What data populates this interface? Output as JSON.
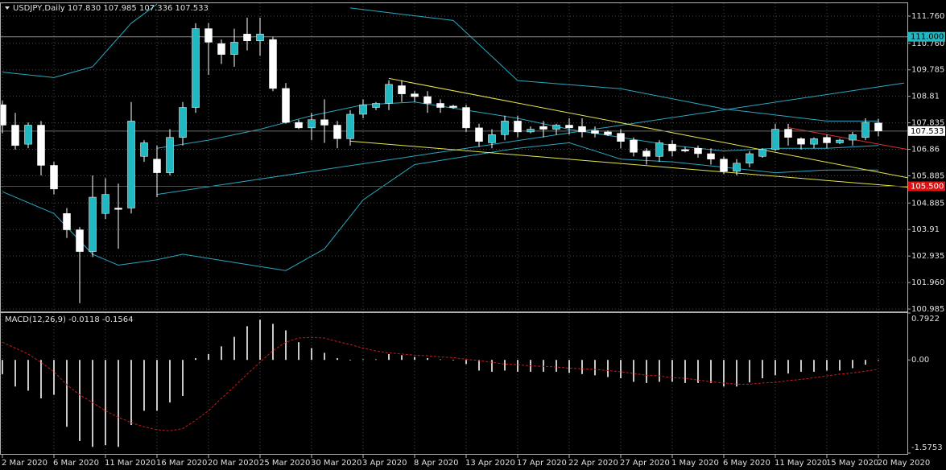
{
  "chart_data": [
    {
      "type": "candlestick",
      "title": "USDJPY,Daily  107.830 107.985 107.336 107.533",
      "categories": [
        "2 Mar 2020",
        null,
        null,
        null,
        "6 Mar 2020",
        null,
        null,
        null,
        "11 Mar 2020",
        null,
        null,
        null,
        "16 Mar 2020",
        null,
        null,
        null,
        "20 Mar 2020",
        null,
        null,
        null,
        "25 Mar 2020",
        null,
        null,
        null,
        "30 Mar 2020",
        null,
        null,
        null,
        "3 Apr 2020",
        null,
        null,
        null,
        "8 Apr 2020",
        null,
        null,
        null,
        "13 Apr 2020",
        null,
        null,
        null,
        "17 Apr 2020",
        null,
        null,
        null,
        "22 Apr 2020",
        null,
        null,
        null,
        "27 Apr 2020",
        null,
        null,
        null,
        "1 May 2020",
        null,
        null,
        null,
        "6 May 2020",
        null,
        null,
        null,
        "11 May 2020",
        null,
        null,
        null,
        "15 May 2020",
        null,
        null,
        null,
        "20 May 2020"
      ],
      "open": [
        108.5,
        107.75,
        107.05,
        107.75,
        106.27,
        104.5,
        103.9,
        103.1,
        104.5,
        104.7,
        104.7,
        106.6,
        106.5,
        106.0,
        107.3,
        108.4,
        111.3,
        110.75,
        110.35,
        111.1,
        110.85,
        110.9,
        109.1,
        107.85,
        107.65,
        107.95,
        107.75,
        107.25,
        108.15,
        108.4,
        108.55,
        109.2,
        108.9,
        108.8,
        108.55,
        108.45,
        108.4,
        107.65,
        107.1,
        107.4,
        107.9,
        107.5,
        107.7,
        107.6,
        107.75,
        107.7,
        107.55,
        107.5,
        107.45,
        107.2,
        106.8,
        106.6,
        107.05,
        106.85,
        106.9,
        106.7,
        106.5,
        106.05,
        106.35,
        106.6,
        106.85,
        107.6,
        107.25,
        107.05,
        107.3,
        107.1,
        107.2,
        107.3,
        107.83
      ],
      "high": [
        108.65,
        108.2,
        107.85,
        107.9,
        106.4,
        104.7,
        104.0,
        105.9,
        105.8,
        105.6,
        108.6,
        107.2,
        107.0,
        107.6,
        108.6,
        111.5,
        111.5,
        110.9,
        111.3,
        111.7,
        111.7,
        111.0,
        109.3,
        107.95,
        108.2,
        108.7,
        107.9,
        108.3,
        108.7,
        108.6,
        109.4,
        109.4,
        109.0,
        109.0,
        108.7,
        108.5,
        108.5,
        107.8,
        107.6,
        108.1,
        108.1,
        107.7,
        107.9,
        107.8,
        108.0,
        108.0,
        107.7,
        107.55,
        107.6,
        107.3,
        106.9,
        107.2,
        107.2,
        106.95,
        107.0,
        106.9,
        106.6,
        106.5,
        106.8,
        106.9,
        107.8,
        107.8,
        107.3,
        107.3,
        107.4,
        107.25,
        107.5,
        108.0,
        107.985
      ],
      "low": [
        107.45,
        106.85,
        106.9,
        105.9,
        105.2,
        103.6,
        101.2,
        102.9,
        104.3,
        103.2,
        104.5,
        106.4,
        105.1,
        105.9,
        107.0,
        108.2,
        109.6,
        110.0,
        109.9,
        110.5,
        110.3,
        109.0,
        107.8,
        107.6,
        107.2,
        107.1,
        106.9,
        107.0,
        108.0,
        108.3,
        108.3,
        108.6,
        108.6,
        108.2,
        108.2,
        108.35,
        107.5,
        106.95,
        106.9,
        107.2,
        107.3,
        107.45,
        107.3,
        107.4,
        107.4,
        107.3,
        107.3,
        107.35,
        106.9,
        106.6,
        106.3,
        106.4,
        106.6,
        106.75,
        106.55,
        106.3,
        105.95,
        105.9,
        106.2,
        106.55,
        106.8,
        107.0,
        106.85,
        106.9,
        106.9,
        107.05,
        107.0,
        107.2,
        107.336
      ],
      "close": [
        107.75,
        107.0,
        107.75,
        106.27,
        105.4,
        103.9,
        103.1,
        105.1,
        105.2,
        104.65,
        107.9,
        107.1,
        106.0,
        107.3,
        108.4,
        111.3,
        110.8,
        110.35,
        110.8,
        110.85,
        111.1,
        109.1,
        107.85,
        107.65,
        107.95,
        107.75,
        107.25,
        108.15,
        108.5,
        108.55,
        109.25,
        108.9,
        108.8,
        108.55,
        108.4,
        108.4,
        107.65,
        107.15,
        107.4,
        107.9,
        107.5,
        107.6,
        107.6,
        107.75,
        107.65,
        107.5,
        107.45,
        107.4,
        107.15,
        106.75,
        106.6,
        107.1,
        106.8,
        106.8,
        106.7,
        106.5,
        106.05,
        106.35,
        106.7,
        106.85,
        107.6,
        107.3,
        107.05,
        107.25,
        107.1,
        107.2,
        107.4,
        107.85,
        107.533
      ],
      "up_color": "#1fb8c3",
      "down_color": "#ffffff",
      "wick_color": "#ffffff",
      "ylim": [
        100.926,
        112.205
      ],
      "yticks": [
        {
          "value": 111.76,
          "label": "111.760"
        },
        {
          "value": 110.76,
          "label": "110.760"
        },
        109.785,
        108.81,
        107.835,
        106.86,
        105.885,
        104.885,
        103.91,
        102.935,
        {
          "value": 101.96,
          "label": "101.960"
        },
        100.985
      ],
      "grid": true,
      "overlays": [
        {
          "color": "#2aa7c0",
          "x": [
            0,
            4,
            7,
            10,
            12
          ],
          "values": [
            109.7,
            109.5,
            109.9,
            111.5,
            112.2
          ]
        },
        {
          "color": "#2aa7c0",
          "x": [
            27,
            35,
            40,
            48,
            56,
            64,
            68
          ],
          "values": [
            112.06,
            111.6,
            109.39,
            109.09,
            108.35,
            107.9,
            107.9
          ]
        },
        {
          "color": "#2aa7c0",
          "x": [
            12,
            16,
            20,
            24,
            28,
            32,
            36,
            40,
            44,
            48,
            52,
            56,
            60,
            64,
            68
          ],
          "values": [
            106.9,
            107.2,
            107.6,
            108.1,
            108.5,
            108.6,
            108.3,
            108.0,
            107.6,
            107.3,
            107.0,
            106.8,
            106.9,
            106.9,
            107.0
          ]
        },
        {
          "color": "#2aa7c0",
          "x": [
            0,
            4,
            7,
            9,
            12,
            14,
            18,
            22,
            25,
            28,
            32,
            36,
            40,
            44,
            48,
            52,
            56,
            60,
            64,
            68
          ],
          "values": [
            105.3,
            104.5,
            103.0,
            102.6,
            102.8,
            103.0,
            102.7,
            102.4,
            103.2,
            105.0,
            106.3,
            106.6,
            106.9,
            107.1,
            106.5,
            106.4,
            106.2,
            106.0,
            106.1,
            106.1
          ]
        },
        {
          "color": "#2aa7c0",
          "x": [
            12,
            70
          ],
          "values": [
            105.2,
            109.3
          ]
        },
        {
          "color": "#e6e64c",
          "x": [
            30,
            70.25
          ],
          "values": [
            109.47,
            105.82
          ]
        },
        {
          "color": "#e6e64c",
          "x": [
            27,
            70.25
          ],
          "values": [
            107.16,
            105.47
          ]
        },
        {
          "color": "#e03030",
          "x": [
            61,
            70.25
          ],
          "values": [
            107.66,
            106.86
          ]
        }
      ],
      "levels": [
        {
          "value": 111,
          "label": "111.000",
          "color": "#8c8c8c",
          "tag_color": "#1fb8c3",
          "text_color": "#000000"
        },
        {
          "value": 105.5,
          "label": "105.500",
          "color": "#e01010",
          "tag_color": "#e01010",
          "text_color": "#ffffff"
        },
        {
          "value": 107.533,
          "label": "107.533",
          "color": "#6a6a6a",
          "tag_color": "#ffffff",
          "text_color": "#000000"
        }
      ]
    },
    {
      "type": "macd",
      "title": "MACD(12,26,9) -0.0118 -0.1564",
      "histogram": {
        "color": "#c8c8c8",
        "values": [
          -0.24,
          -0.45,
          -0.52,
          -0.65,
          -0.59,
          -1.13,
          -1.37,
          -1.47,
          -1.44,
          -1.47,
          -1.1,
          -0.86,
          -0.86,
          -0.72,
          -0.61,
          0.03,
          0.1,
          0.23,
          0.39,
          0.57,
          0.68,
          0.61,
          0.5,
          0.3,
          0.2,
          0.12,
          0.03,
          -0.01,
          0.01,
          0.01,
          0.1,
          0.08,
          0.05,
          0.03,
          0.01,
          -0.01,
          -0.07,
          -0.18,
          -0.2,
          -0.18,
          -0.2,
          -0.2,
          -0.2,
          -0.2,
          -0.22,
          -0.24,
          -0.26,
          -0.29,
          -0.31,
          -0.37,
          -0.39,
          -0.37,
          -0.37,
          -0.39,
          -0.39,
          -0.39,
          -0.45,
          -0.45,
          -0.38,
          -0.31,
          -0.26,
          -0.23,
          -0.2,
          -0.2,
          -0.18,
          -0.18,
          -0.14,
          -0.08,
          -0.0118
        ]
      },
      "signal": {
        "color": "#d01818",
        "values": [
          0.3,
          0.2,
          0.1,
          -0.04,
          -0.2,
          -0.42,
          -0.59,
          -0.72,
          -0.86,
          -0.97,
          -1.06,
          -1.13,
          -1.18,
          -1.2,
          -1.16,
          -1.02,
          -0.86,
          -0.65,
          -0.45,
          -0.24,
          -0.04,
          0.16,
          0.3,
          0.37,
          0.38,
          0.37,
          0.31,
          0.26,
          0.2,
          0.15,
          0.12,
          0.1,
          0.08,
          0.07,
          0.05,
          0.04,
          0.01,
          -0.01,
          -0.04,
          -0.07,
          -0.08,
          -0.1,
          -0.11,
          -0.12,
          -0.14,
          -0.15,
          -0.16,
          -0.18,
          -0.2,
          -0.23,
          -0.26,
          -0.27,
          -0.3,
          -0.31,
          -0.34,
          -0.37,
          -0.39,
          -0.41,
          -0.41,
          -0.39,
          -0.38,
          -0.35,
          -0.33,
          -0.3,
          -0.27,
          -0.24,
          -0.22,
          -0.19,
          -0.1564
        ]
      },
      "ylim": [
        -1.5753,
        0.7922
      ],
      "yticks": [
        0.7922,
        {
          "value": 0,
          "label": "0.00"
        },
        -1.5753
      ]
    }
  ]
}
